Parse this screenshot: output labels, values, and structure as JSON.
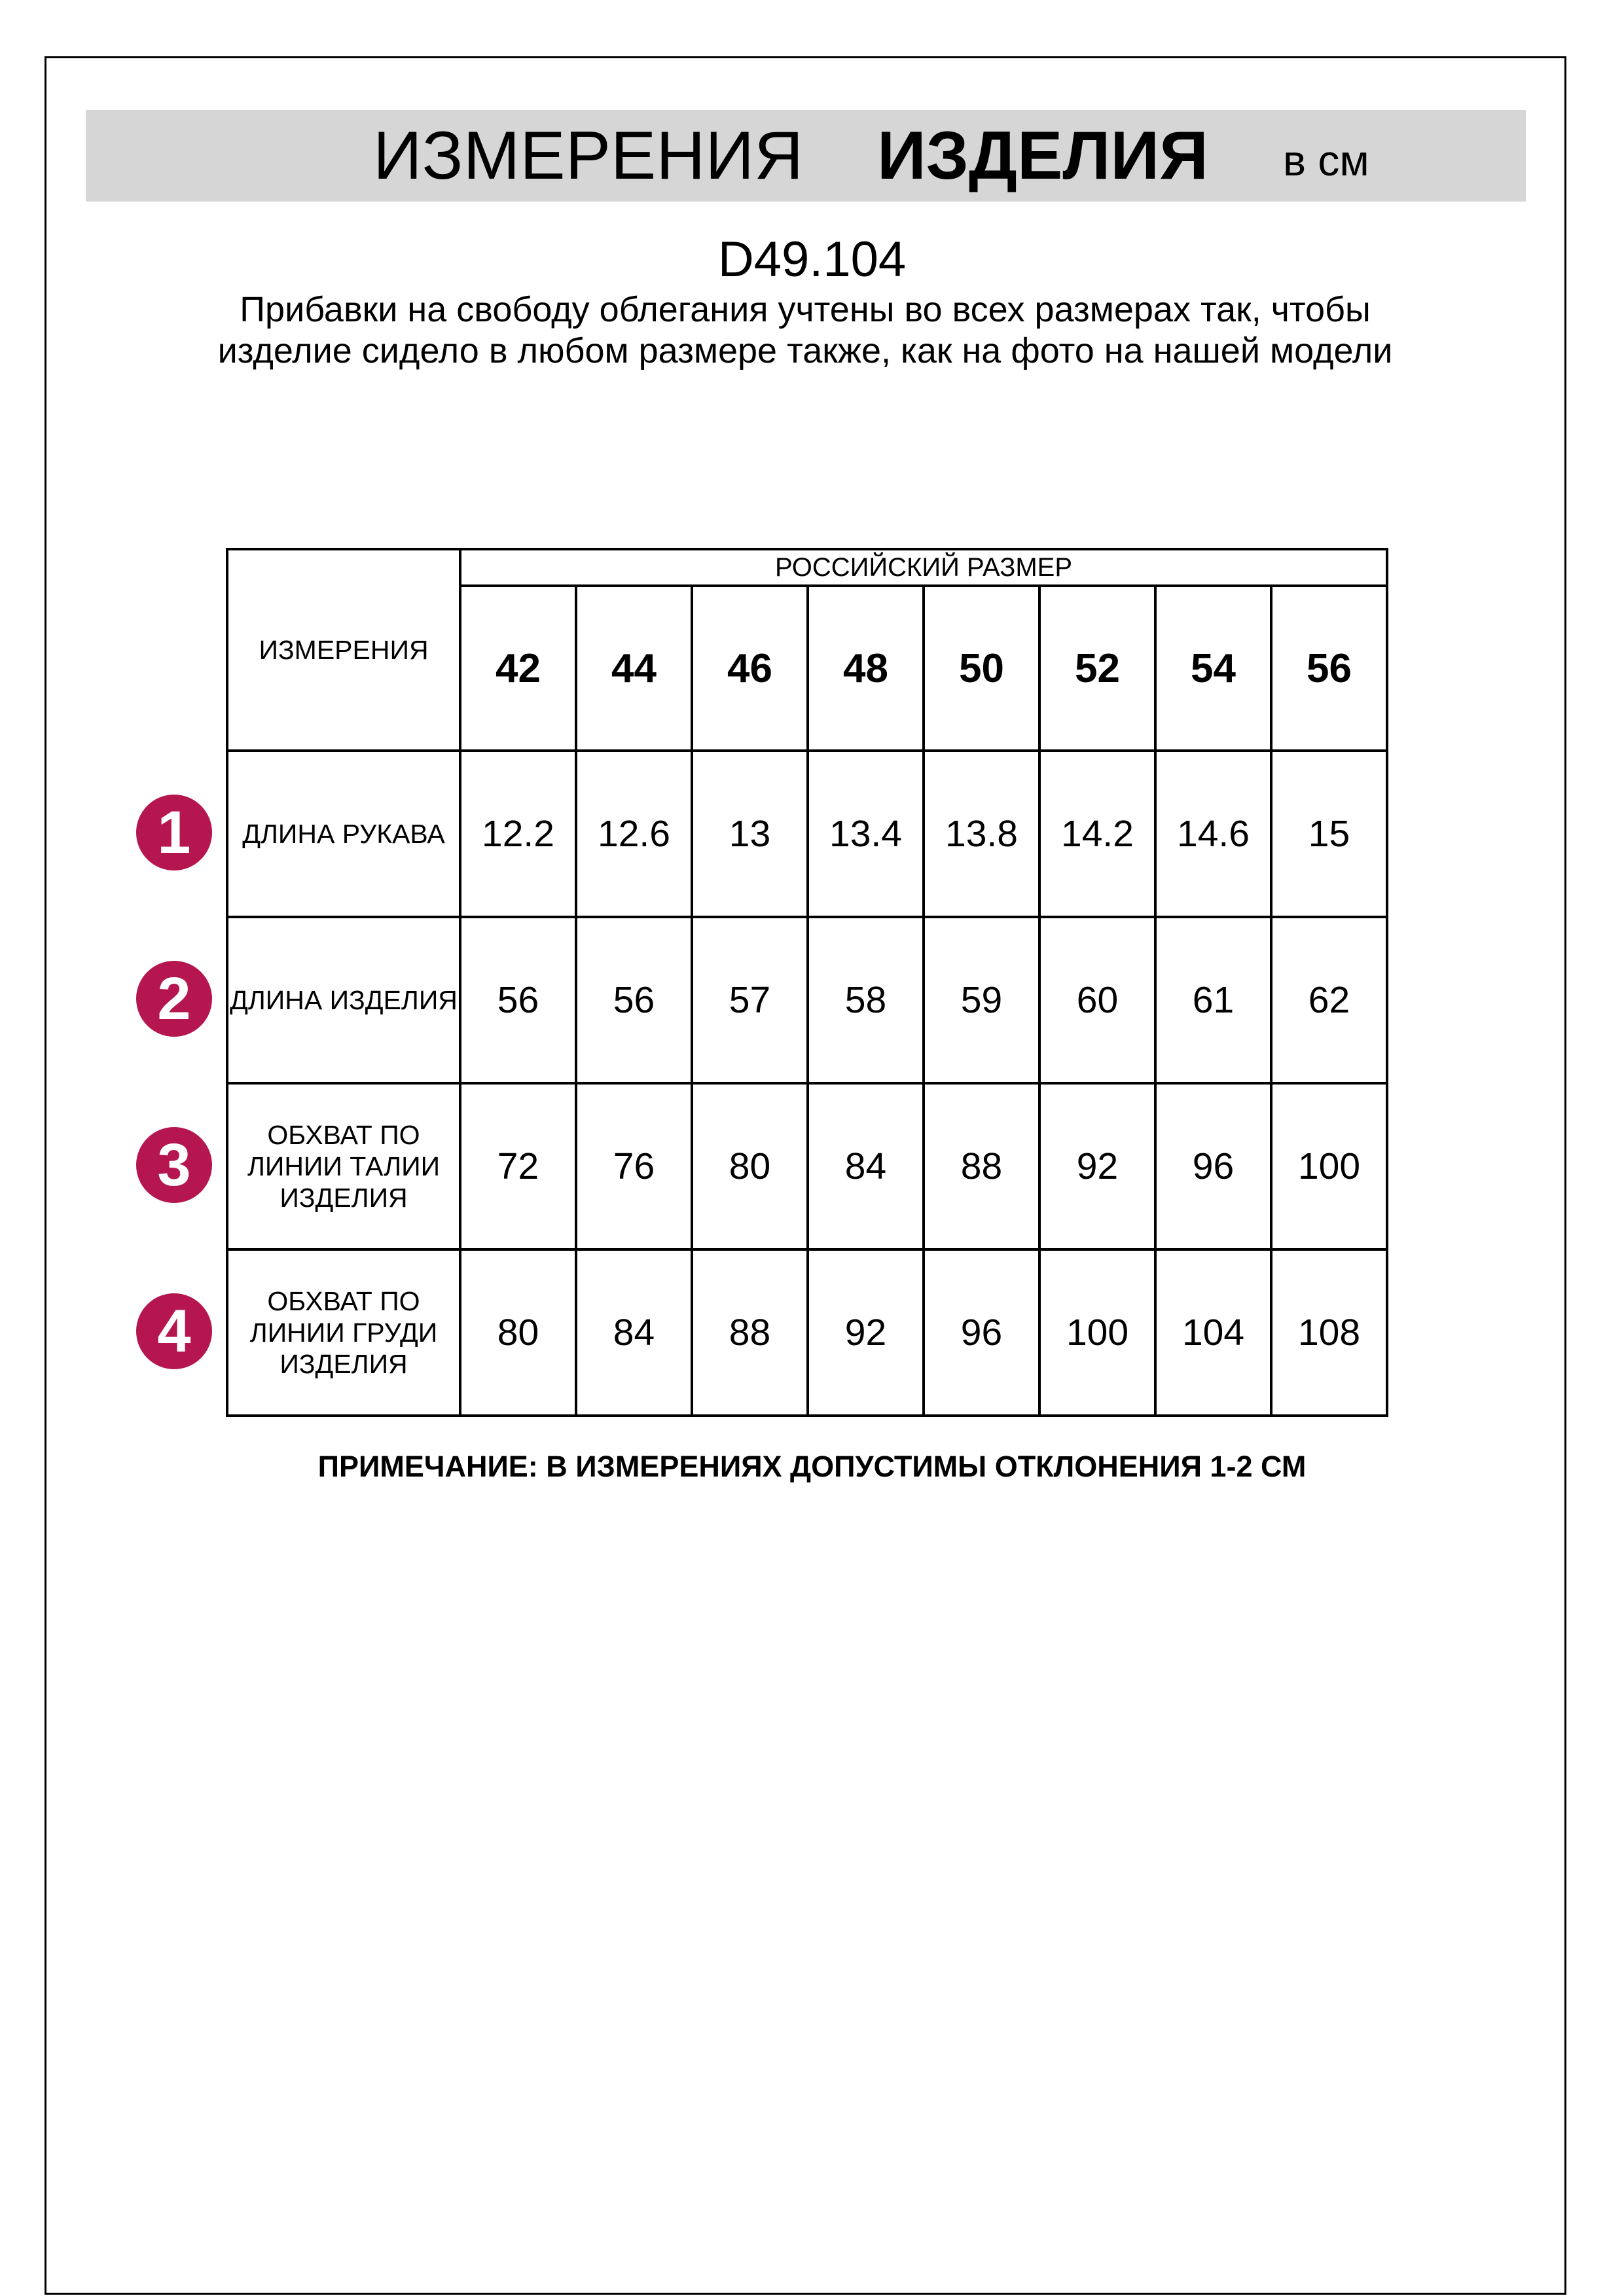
{
  "header": {
    "title_regular": "ИЗМЕРЕНИЯ",
    "title_bold": "ИЗДЕЛИЯ",
    "unit": "в см"
  },
  "product_code": "D49.104",
  "description": "Прибавки на свободу облегания учтены во всех размерах так, чтобы изделие сидело в любом размере также, как на фото на нашей модели",
  "table": {
    "corner_label": "ИЗМЕРЕНИЯ",
    "group_label": "РОССИЙСКИЙ РАЗМЕР",
    "sizes": [
      "42",
      "44",
      "46",
      "48",
      "50",
      "52",
      "54",
      "56"
    ],
    "rows": [
      {
        "num": "1",
        "label": "ДЛИНА РУКАВА",
        "values": [
          "12.2",
          "12.6",
          "13",
          "13.4",
          "13.8",
          "14.2",
          "14.6",
          "15"
        ]
      },
      {
        "num": "2",
        "label": "ДЛИНА ИЗДЕЛИЯ",
        "values": [
          "56",
          "56",
          "57",
          "58",
          "59",
          "60",
          "61",
          "62"
        ]
      },
      {
        "num": "3",
        "label": "ОБХВАТ ПО ЛИНИИ ТАЛИИ ИЗДЕЛИЯ",
        "values": [
          "72",
          "76",
          "80",
          "84",
          "88",
          "92",
          "96",
          "100"
        ]
      },
      {
        "num": "4",
        "label": "ОБХВАТ ПО ЛИНИИ ГРУДИ ИЗДЕЛИЯ",
        "values": [
          "80",
          "84",
          "88",
          "92",
          "96",
          "100",
          "104",
          "108"
        ]
      }
    ]
  },
  "note": "ПРИМЕЧАНИЕ: В ИЗМЕРЕНИЯХ ДОПУСТИМЫ ОТКЛОНЕНИЯ 1-2 СМ",
  "colors": {
    "badge": "#b5164f",
    "banner": "#d6d6d6"
  }
}
